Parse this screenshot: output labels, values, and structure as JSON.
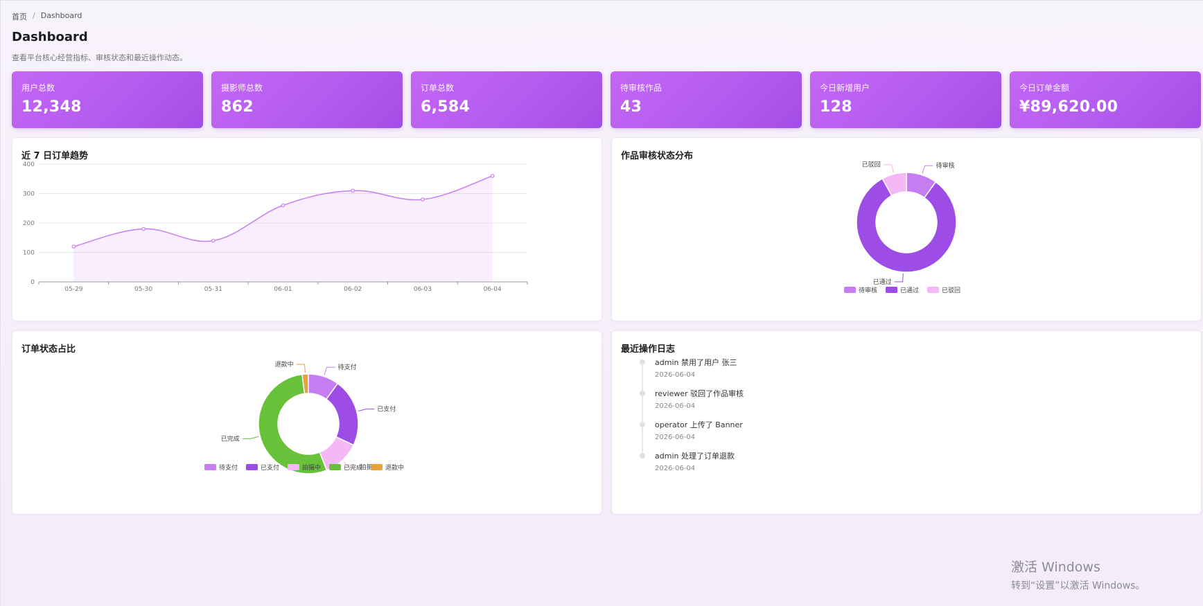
{
  "breadcrumb": {
    "home": "首页",
    "sep": "/",
    "current": "Dashboard"
  },
  "header": {
    "title": "Dashboard",
    "subtitle": "查看平台核心经营指标、审核状态和最近操作动态。"
  },
  "stats": [
    {
      "label": "用户总数",
      "value": "12,348"
    },
    {
      "label": "摄影师总数",
      "value": "862"
    },
    {
      "label": "订单总数",
      "value": "6,584"
    },
    {
      "label": "待审核作品",
      "value": "43"
    },
    {
      "label": "今日新增用户",
      "value": "128"
    },
    {
      "label": "今日订单金额",
      "value": "¥89,620.00"
    }
  ],
  "colors": {
    "accent": "#b35cf0",
    "line": "#c77df2",
    "purple_dark": "#9d4ce5",
    "pink": "#f3b8f5",
    "green": "#67c23a",
    "orange": "#e6a23c"
  },
  "panels": {
    "trend_title": "近 7 日订单趋势",
    "review_title": "作品审核状态分布",
    "order_title": "订单状态占比",
    "log_title": "最近操作日志"
  },
  "chart_data": [
    {
      "type": "area",
      "x": [
        "05-29",
        "05-30",
        "05-31",
        "06-01",
        "06-02",
        "06-03",
        "06-04"
      ],
      "values": [
        120,
        180,
        140,
        260,
        310,
        280,
        360
      ],
      "ylim": [
        0,
        400
      ],
      "yticks": [
        0,
        100,
        200,
        300,
        400
      ],
      "grid": true,
      "smooth": true
    },
    {
      "type": "pie",
      "donut": true,
      "categories": [
        "待审核",
        "已通过",
        "已驳回"
      ],
      "values": [
        10,
        82,
        8
      ],
      "colors": [
        "#c77df2",
        "#9d4ce5",
        "#f3b8f5"
      ],
      "legend": "bottom"
    },
    {
      "type": "pie",
      "donut": true,
      "categories": [
        "待支付",
        "已支付",
        "拍摄中",
        "已完成",
        "退款中"
      ],
      "values": [
        10,
        22,
        12,
        54,
        2
      ],
      "colors": [
        "#c77df2",
        "#9d4ce5",
        "#f3b8f5",
        "#67c23a",
        "#e6a23c"
      ],
      "legend": "bottom"
    }
  ],
  "logs": [
    {
      "text": "admin 禁用了用户 张三",
      "time": "2026-06-04"
    },
    {
      "text": "reviewer 驳回了作品审核",
      "time": "2026-06-04"
    },
    {
      "text": "operator 上传了 Banner",
      "time": "2026-06-04"
    },
    {
      "text": "admin 处理了订单退款",
      "time": "2026-06-04"
    }
  ],
  "watermark": {
    "title": "激活 Windows",
    "subtitle": "转到“设置”以激活 Windows。"
  }
}
